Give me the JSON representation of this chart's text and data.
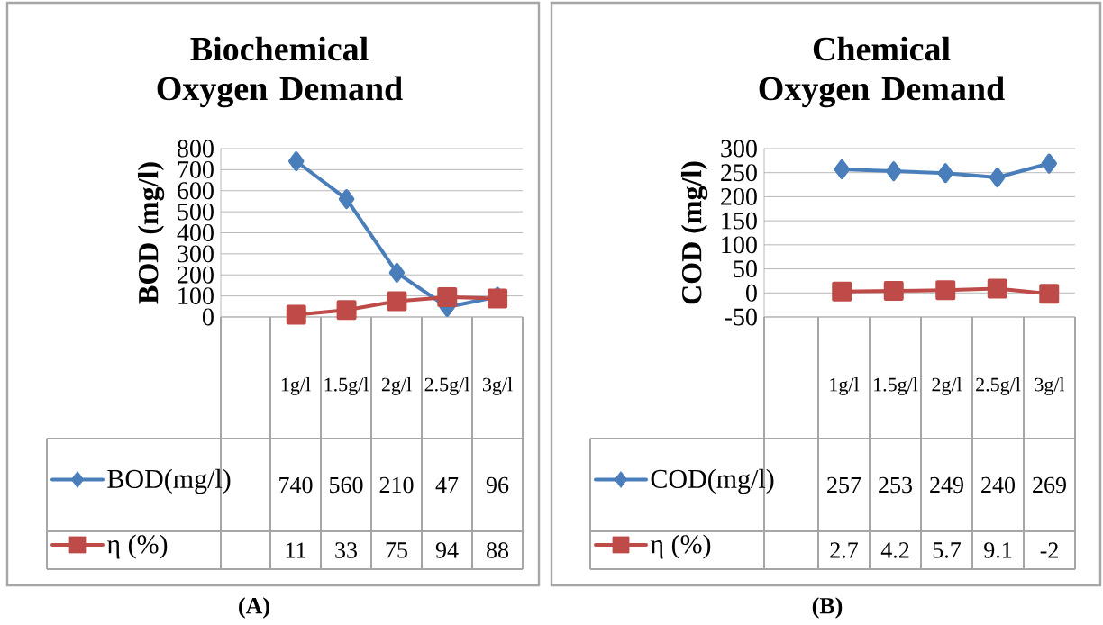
{
  "chart_data": [
    {
      "type": "line",
      "title": "Biochemical Oxygen Demand",
      "ylabel": "BOD (mg/l)",
      "categories": [
        "1g/l",
        "1.5g/l",
        "2g/l",
        "2.5g/l",
        "3g/l"
      ],
      "series": [
        {
          "name": "BOD(mg/l)",
          "color": "#4a7ebb",
          "marker": "diamond",
          "values": [
            740,
            560,
            210,
            47,
            96
          ]
        },
        {
          "name": "η (%)",
          "color": "#be4b48",
          "marker": "square",
          "values": [
            11,
            33,
            75,
            94,
            88
          ]
        }
      ],
      "ylim": [
        0,
        800
      ],
      "yticks": [
        0,
        100,
        200,
        300,
        400,
        500,
        600,
        700,
        800
      ],
      "grid": "y",
      "legend": "bottom",
      "data_labels": true,
      "annotations": [
        "(A)"
      ]
    },
    {
      "type": "line",
      "title": "Chemical Oxygen Demand",
      "ylabel": "COD (mg/l)",
      "categories": [
        "1g/l",
        "1.5g/l",
        "2g/l",
        "2.5g/l",
        "3g/l"
      ],
      "series": [
        {
          "name": "COD(mg/l)",
          "color": "#4a7ebb",
          "marker": "diamond",
          "values": [
            257,
            253,
            249,
            240,
            269
          ]
        },
        {
          "name": "η (%)",
          "color": "#be4b48",
          "marker": "square",
          "values": [
            2.7,
            4.2,
            5.7,
            9.1,
            -2
          ]
        }
      ],
      "ylim": [
        -50,
        300
      ],
      "yticks": [
        -50,
        0,
        50,
        100,
        150,
        200,
        250,
        300
      ],
      "grid": "y",
      "legend": "bottom",
      "data_labels": true,
      "annotations": [
        "(B)"
      ]
    }
  ]
}
